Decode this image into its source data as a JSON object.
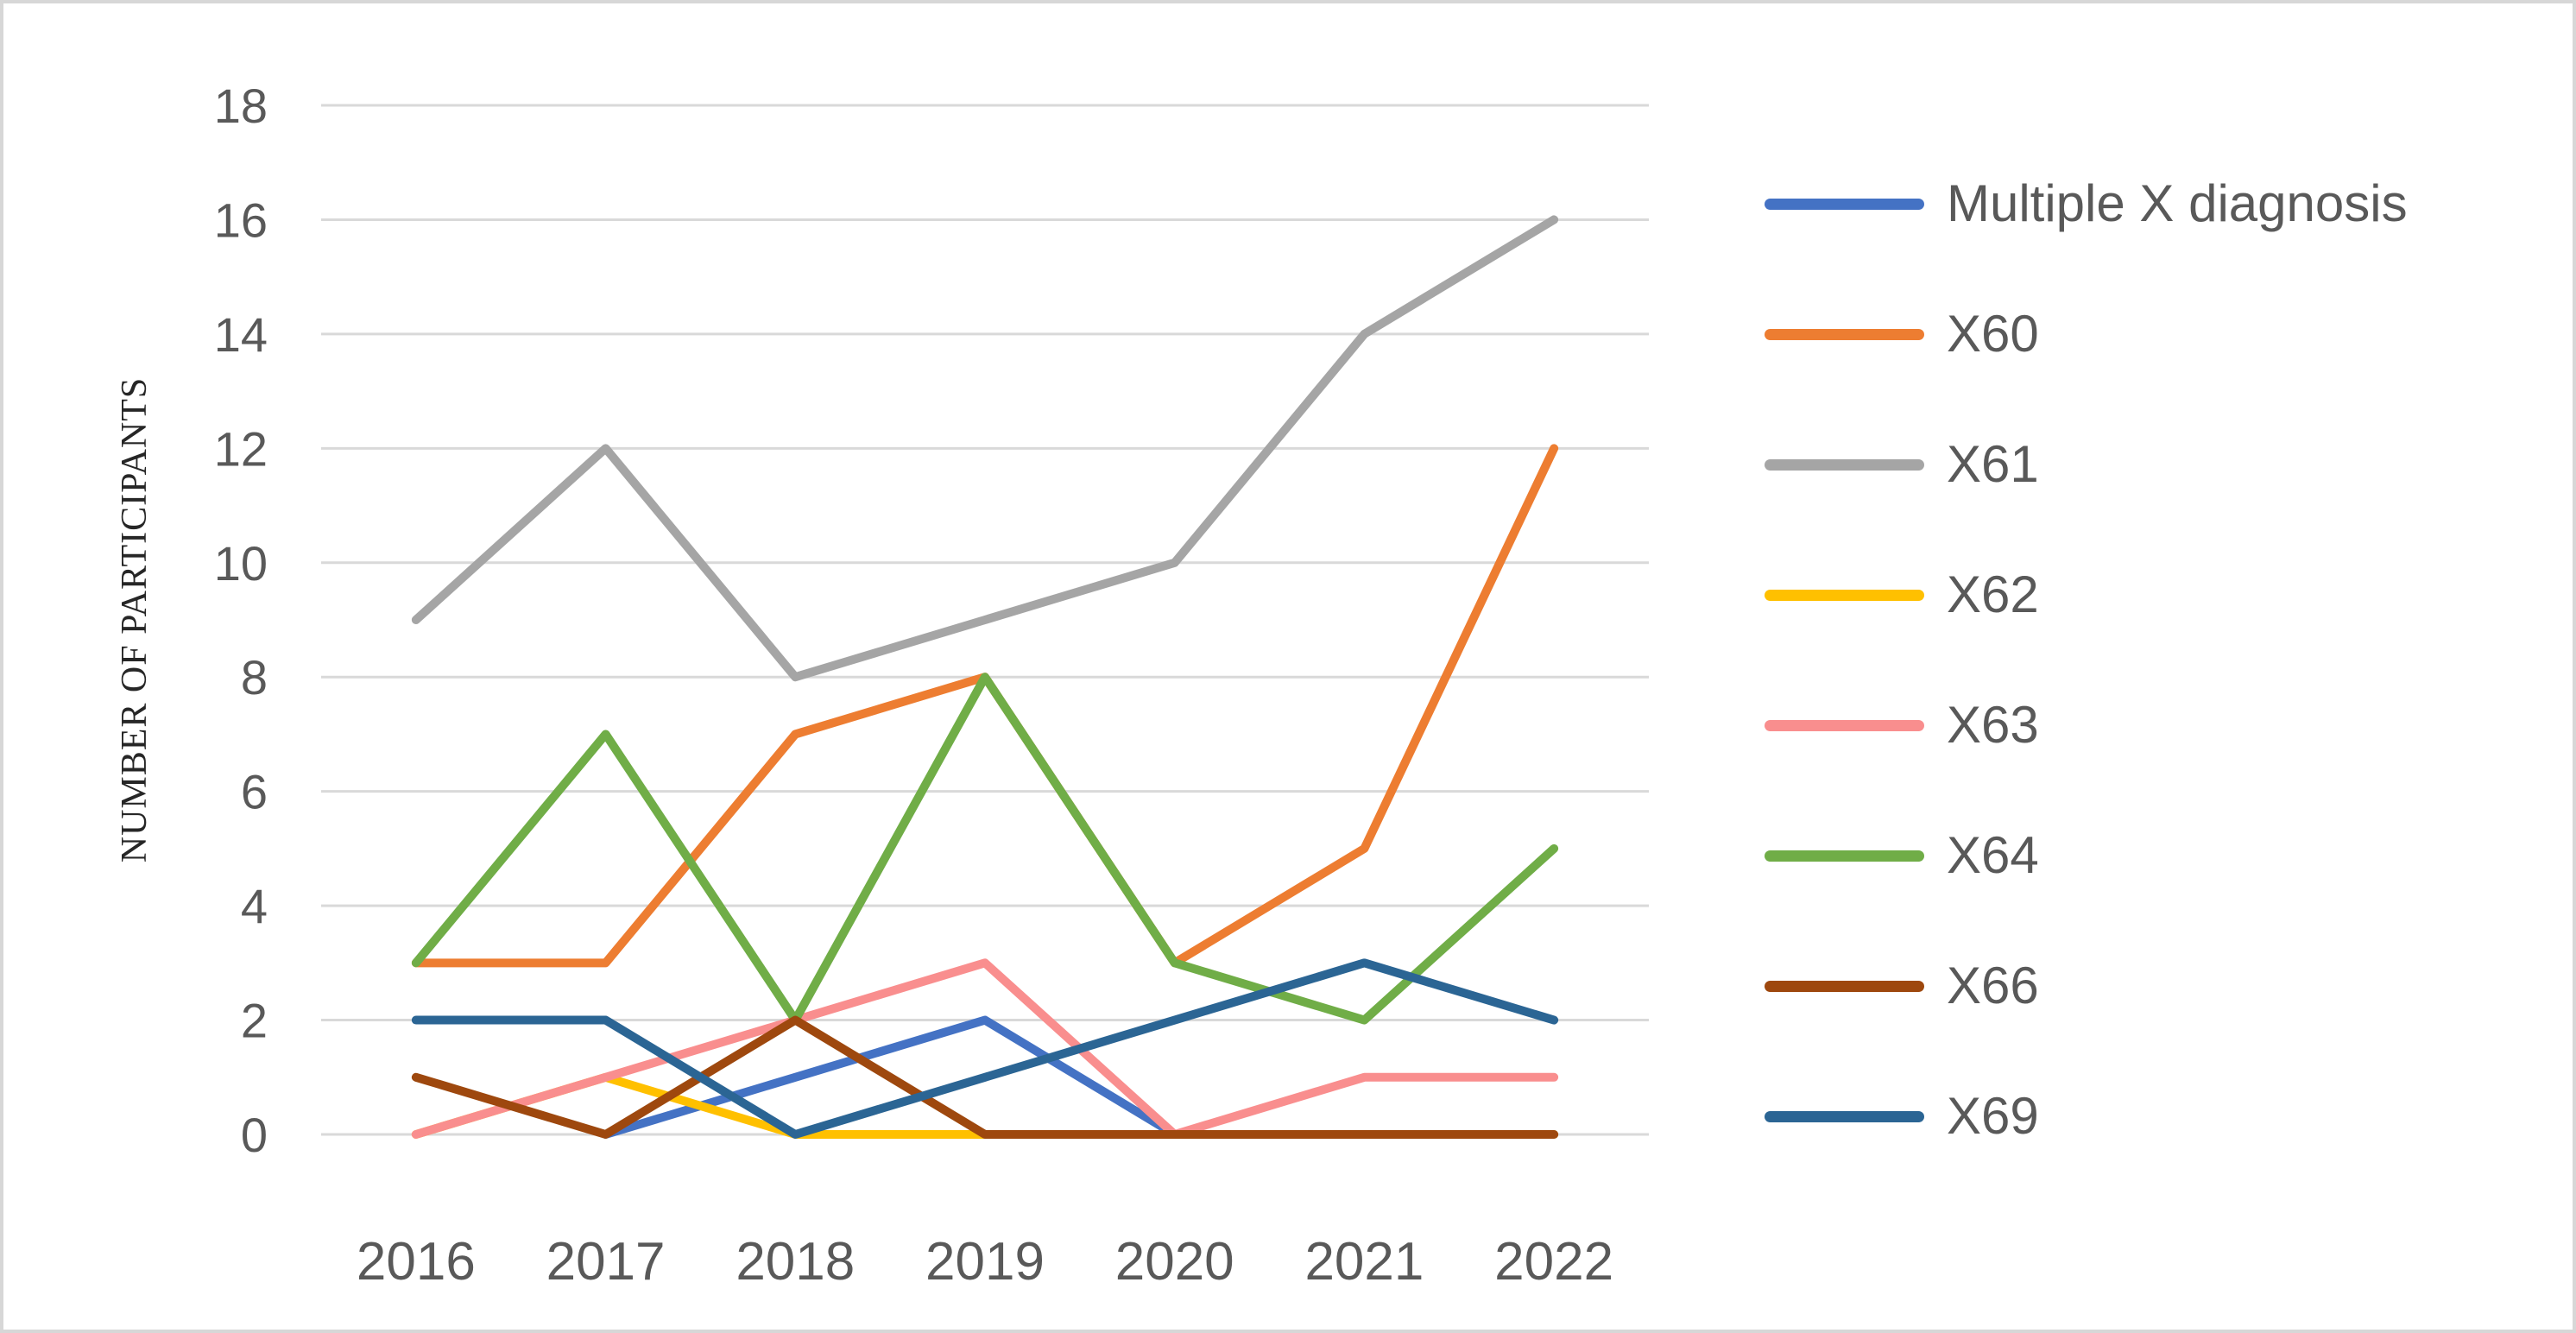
{
  "colors": {
    "gridline": "#d9d9d9",
    "axis_text": "#595959",
    "legend_text": "#595959",
    "y_title_text": "#262626",
    "frame_border": "#d7d7d7",
    "background": "#ffffff"
  },
  "chart_data": {
    "type": "line",
    "title": "",
    "xlabel": "",
    "ylabel": "NUMBER OF PARTICIPANTS",
    "ylim": [
      0,
      18
    ],
    "yticks": [
      0,
      2,
      4,
      6,
      8,
      10,
      12,
      14,
      16,
      18
    ],
    "grid": true,
    "legend_position": "right",
    "categories": [
      "2016",
      "2017",
      "2018",
      "2019",
      "2020",
      "2021",
      "2022"
    ],
    "series": [
      {
        "name": "Multiple X diagnosis",
        "color": "#4472C4",
        "values": [
          null,
          0,
          1,
          2,
          0,
          null,
          null
        ]
      },
      {
        "name": "X60",
        "color": "#ED7D31",
        "values": [
          3,
          3,
          7,
          8,
          3,
          5,
          12
        ]
      },
      {
        "name": "X61",
        "color": "#A5A5A5",
        "values": [
          9,
          12,
          8,
          9,
          10,
          14,
          16
        ]
      },
      {
        "name": "X62",
        "color": "#FFC000",
        "values": [
          0,
          1,
          0,
          0,
          0,
          0,
          0
        ]
      },
      {
        "name": "X63",
        "color": "#F98E8E",
        "values": [
          0,
          1,
          2,
          3,
          0,
          1,
          1
        ]
      },
      {
        "name": "X64",
        "color": "#70AD47",
        "values": [
          3,
          7,
          2,
          8,
          3,
          2,
          5
        ]
      },
      {
        "name": "X66",
        "color": "#9E480E",
        "values": [
          1,
          0,
          2,
          0,
          0,
          0,
          0
        ]
      },
      {
        "name": "X69",
        "color": "#2B6594",
        "values": [
          2,
          2,
          0,
          1,
          2,
          3,
          2
        ]
      }
    ]
  }
}
